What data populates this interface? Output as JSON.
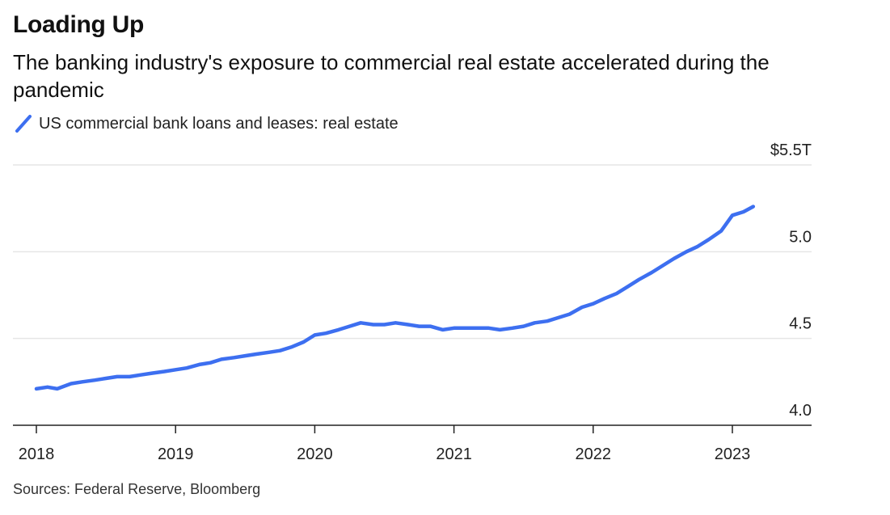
{
  "title": "Loading Up",
  "subtitle": "The banking industry's exposure to commercial real estate accelerated during the pandemic",
  "source": "Sources: Federal Reserve, Bloomberg",
  "colors": {
    "line": "#3D6FF0",
    "grid": "#e6e6e6",
    "axis": "#222222"
  },
  "chart_data": {
    "type": "line",
    "title": "Loading Up",
    "subtitle": "The banking industry's exposure to commercial real estate accelerated during the pandemic",
    "xlabel": "",
    "ylabel": "",
    "y_unit_label": "$5.5T",
    "ylim": [
      4.0,
      5.5
    ],
    "xlim": [
      2018.0,
      2023.53
    ],
    "grid": true,
    "legend_position": "top-left",
    "x_ticks": [
      {
        "value": 2018,
        "label": "2018"
      },
      {
        "value": 2019,
        "label": "2019"
      },
      {
        "value": 2020,
        "label": "2020"
      },
      {
        "value": 2021,
        "label": "2021"
      },
      {
        "value": 2022,
        "label": "2022"
      },
      {
        "value": 2023,
        "label": "2023"
      }
    ],
    "y_ticks": [
      {
        "value": 5.5,
        "label": "$5.5T"
      },
      {
        "value": 5.0,
        "label": "5.0"
      },
      {
        "value": 4.5,
        "label": "4.5"
      },
      {
        "value": 4.0,
        "label": "4.0"
      }
    ],
    "series": [
      {
        "name": "US commercial bank loans and leases: real estate",
        "x": [
          2018.0,
          2018.08,
          2018.15,
          2018.25,
          2018.33,
          2018.42,
          2018.5,
          2018.58,
          2018.67,
          2018.75,
          2018.83,
          2018.92,
          2019.0,
          2019.08,
          2019.17,
          2019.25,
          2019.33,
          2019.42,
          2019.5,
          2019.58,
          2019.67,
          2019.75,
          2019.83,
          2019.92,
          2020.0,
          2020.08,
          2020.17,
          2020.25,
          2020.33,
          2020.42,
          2020.5,
          2020.58,
          2020.67,
          2020.75,
          2020.83,
          2020.92,
          2021.0,
          2021.08,
          2021.17,
          2021.25,
          2021.33,
          2021.42,
          2021.5,
          2021.58,
          2021.67,
          2021.75,
          2021.83,
          2021.92,
          2022.0,
          2022.08,
          2022.17,
          2022.25,
          2022.33,
          2022.42,
          2022.5,
          2022.58,
          2022.67,
          2022.75,
          2022.83,
          2022.92,
          2023.0,
          2023.08,
          2023.15
        ],
        "values": [
          4.21,
          4.22,
          4.21,
          4.24,
          4.25,
          4.26,
          4.27,
          4.28,
          4.28,
          4.29,
          4.3,
          4.31,
          4.32,
          4.33,
          4.35,
          4.36,
          4.38,
          4.39,
          4.4,
          4.41,
          4.42,
          4.43,
          4.45,
          4.48,
          4.52,
          4.53,
          4.55,
          4.57,
          4.59,
          4.58,
          4.58,
          4.59,
          4.58,
          4.57,
          4.57,
          4.55,
          4.56,
          4.56,
          4.56,
          4.56,
          4.55,
          4.56,
          4.57,
          4.59,
          4.6,
          4.62,
          4.64,
          4.68,
          4.7,
          4.73,
          4.76,
          4.8,
          4.84,
          4.88,
          4.92,
          4.96,
          5.0,
          5.03,
          5.07,
          5.12,
          5.21,
          5.23,
          5.26
        ]
      }
    ]
  }
}
